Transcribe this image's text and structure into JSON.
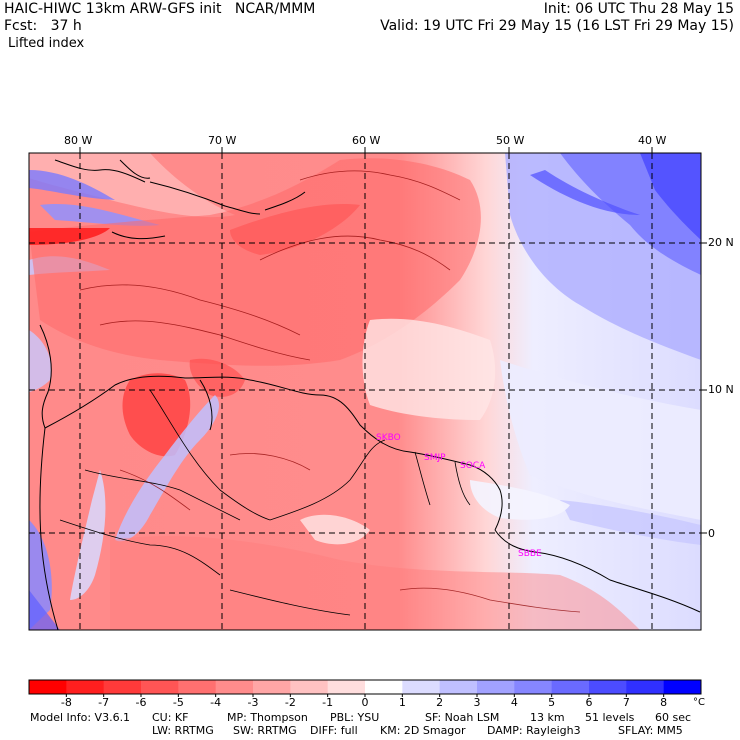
{
  "header": {
    "line1_left": "HAIC-HIWC 13km ARW-GFS init   NCAR/MMM",
    "line1_right": "Init: 06 UTC Thu 28 May 15",
    "line2_left": "Fcst:   37 h",
    "line2_right": "Valid: 19 UTC Fri 29 May 15 (16 LST Fri 29 May 15)",
    "field": "Lifted index"
  },
  "map": {
    "lon_labels": [
      "80 W",
      "70 W",
      "60 W",
      "50 W",
      "40 W"
    ],
    "lat_labels": [
      "20 N",
      "10 N",
      "0"
    ],
    "station_labels": [
      "SKBO",
      "SMJP",
      "SOCA",
      "SBBE"
    ]
  },
  "colorbar": {
    "levels": [
      "-8",
      "-7",
      "-6",
      "-5",
      "-4",
      "-3",
      "-2",
      "-1",
      "0",
      "1",
      "2",
      "3",
      "4",
      "5",
      "6",
      "7",
      "8"
    ],
    "unit": "°C",
    "colors": [
      "#ff0000",
      "#ff1f1f",
      "#ff3a3a",
      "#ff5555",
      "#ff7070",
      "#ff8c8c",
      "#ffa6a6",
      "#ffc2c2",
      "#ffdede",
      "#ffffff",
      "#dcdcff",
      "#c0c0ff",
      "#a2a2ff",
      "#8686ff",
      "#6a6aff",
      "#4c4cff",
      "#3030ff",
      "#0000ff"
    ]
  },
  "footer": {
    "line1": [
      "Model Info: V3.6.1",
      "CU: KF",
      "MP: Thompson",
      "PBL: YSU",
      "SF: Noah LSM",
      "13 km",
      "51 levels",
      "60 sec"
    ],
    "line2": [
      "LW: RRTMG",
      "SW: RRTMG",
      "DIFF: full",
      "KM: 2D Smagor",
      "DAMP: Rayleigh3",
      "SFLAY: MM5"
    ]
  }
}
